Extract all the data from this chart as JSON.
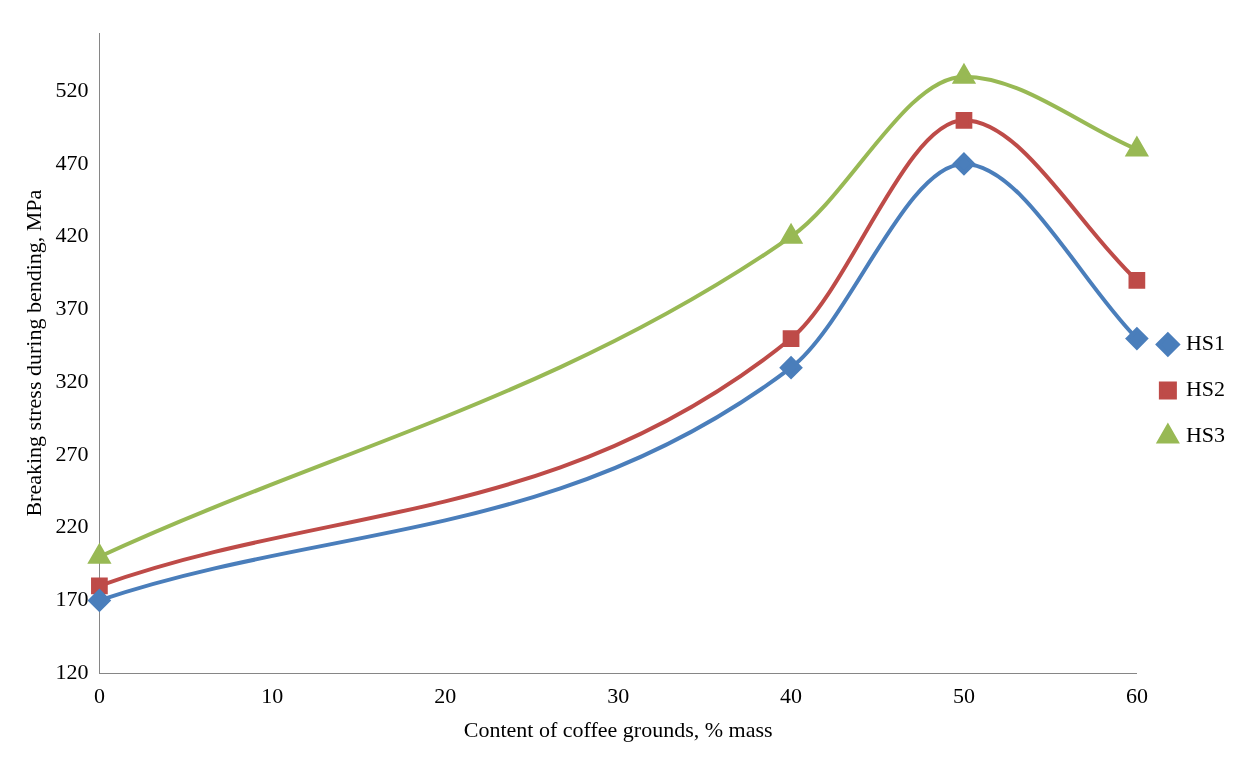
{
  "chart_data": {
    "type": "line",
    "xlabel": "Content of coffee grounds, % mass",
    "ylabel": "Breaking stress during bending, MPa",
    "x": [
      0,
      40,
      50,
      60
    ],
    "xlim": [
      0,
      60
    ],
    "xticks": [
      0,
      10,
      20,
      30,
      40,
      50,
      60
    ],
    "ylim": [
      120,
      560
    ],
    "yticks": [
      120,
      170,
      220,
      270,
      320,
      370,
      420,
      470,
      520
    ],
    "grid": false,
    "legend": "right",
    "line_style": "solid",
    "series": [
      {
        "name": "HS1",
        "color": "#4a7ebb",
        "marker": "diamond",
        "values": [
          170,
          330,
          470,
          350
        ]
      },
      {
        "name": "HS2",
        "color": "#be4b48",
        "marker": "square",
        "values": [
          180,
          350,
          500,
          390
        ]
      },
      {
        "name": "HS3",
        "color": "#98b954",
        "marker": "triangle",
        "values": [
          200,
          420,
          530,
          480
        ]
      }
    ]
  }
}
